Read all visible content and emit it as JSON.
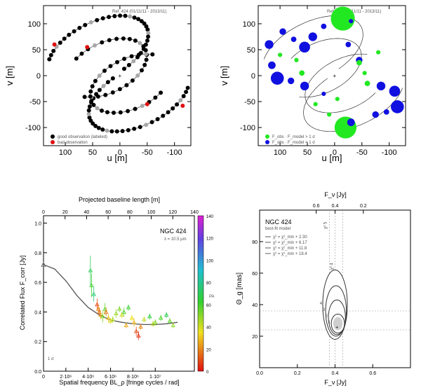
{
  "chart_data": [
    {
      "type": "scatter",
      "name": "uv-coverage-observations",
      "title": "Ref. 424 (01/11/11 - 2013/11)",
      "xlabel": "u [m]",
      "ylabel": "v [m]",
      "xlim": [
        140,
        -130
      ],
      "ylim": [
        -135,
        135
      ],
      "x_ticks": [
        100,
        50,
        0,
        -50,
        -100
      ],
      "y_ticks": [
        100,
        50,
        0,
        -50,
        -100
      ],
      "legend": [
        "good observation (labeled)",
        "bad observation"
      ],
      "colors": {
        "good": "#000000",
        "bad": "#e01010",
        "flagged": "#a8a8a8"
      },
      "tracks": [
        {
          "cx": 40,
          "cy": 48,
          "a": 100,
          "b": 55,
          "rot": -28,
          "from": 30,
          "to": 255,
          "dots": 34
        },
        {
          "cx": -35,
          "cy": -40,
          "a": 100,
          "b": 55,
          "rot": -28,
          "from": 210,
          "to": 435,
          "dots": 34
        },
        {
          "cx": 25,
          "cy": 15,
          "a": 80,
          "b": 48,
          "rot": -28,
          "from": 60,
          "to": 320,
          "dots": 26
        },
        {
          "cx": -20,
          "cy": -15,
          "a": 80,
          "b": 48,
          "rot": -28,
          "from": 240,
          "to": 500,
          "dots": 26
        }
      ],
      "bad_points": [
        [
          120,
          60
        ],
        [
          60,
          55
        ],
        [
          -50,
          -55
        ],
        [
          -115,
          -58
        ]
      ],
      "center": [
        0,
        0
      ]
    },
    {
      "type": "scatter",
      "name": "uv-coverage-flux",
      "title": "Ref. 424 (01/11/11 - 2013/11)",
      "xlabel": "u [m]",
      "ylabel": "v [m]",
      "xlim": [
        140,
        -130
      ],
      "ylim": [
        -135,
        135
      ],
      "x_ticks": [
        100,
        50,
        0,
        -50,
        -100
      ],
      "y_ticks": [
        100,
        50,
        0,
        -50,
        -100
      ],
      "legend": [
        "F_obs · F_model > 1 σ",
        "F_obs · F_model < 1 σ"
      ],
      "colors": {
        "over": "#22e822",
        "under": "#1010e0"
      },
      "bubbles": [
        [
          -15,
          110,
          22,
          "over"
        ],
        [
          40,
          75,
          8,
          "under"
        ],
        [
          55,
          55,
          10,
          "under"
        ],
        [
          120,
          60,
          8,
          "under"
        ],
        [
          95,
          85,
          6,
          "under"
        ],
        [
          75,
          70,
          5,
          "under"
        ],
        [
          20,
          95,
          5,
          "under"
        ],
        [
          -30,
          105,
          4,
          "under"
        ],
        [
          115,
          20,
          7,
          "under"
        ],
        [
          105,
          -5,
          12,
          "under"
        ],
        [
          80,
          -10,
          6,
          "under"
        ],
        [
          55,
          -20,
          8,
          "under"
        ],
        [
          -45,
          30,
          6,
          "under"
        ],
        [
          -55,
          5,
          4,
          "over"
        ],
        [
          -85,
          -20,
          8,
          "under"
        ],
        [
          -110,
          -30,
          10,
          "under"
        ],
        [
          -115,
          -60,
          12,
          "under"
        ],
        [
          -75,
          -75,
          6,
          "under"
        ],
        [
          -20,
          -100,
          20,
          "over"
        ],
        [
          -30,
          -90,
          7,
          "under"
        ],
        [
          60,
          5,
          5,
          "over"
        ],
        [
          -45,
          25,
          5,
          "over"
        ],
        [
          10,
          -75,
          4,
          "over"
        ],
        [
          -60,
          -15,
          5,
          "over"
        ],
        [
          100,
          40,
          4,
          "over"
        ],
        [
          35,
          -55,
          4,
          "over"
        ],
        [
          -95,
          -70,
          5,
          "under"
        ],
        [
          70,
          30,
          4,
          "over"
        ],
        [
          -25,
          60,
          5,
          "under"
        ],
        [
          -80,
          45,
          4,
          "over"
        ],
        [
          20,
          -35,
          4,
          "under"
        ],
        [
          -5,
          -45,
          4,
          "over"
        ]
      ]
    },
    {
      "type": "scatter",
      "name": "correlated-flux-vs-spatial-frequency",
      "title": "NGC 424",
      "subtitle": "λ = 10.5 μm",
      "xlabel": "Spatial frequency BL_ρ [fringe cycles / rad]",
      "x2label": "Projected baseline length [m]",
      "ylabel": "Correlated Flux F_corr [Jy]",
      "xlim": [
        0,
        13500000.0
      ],
      "ylim": [
        0.0,
        1.05
      ],
      "x_tick_labels": [
        "0",
        "2·10⁶",
        "4·10⁶",
        "6·10⁶",
        "8·10⁶",
        "1·10⁷"
      ],
      "x_tick_values": [
        0,
        2000000.0,
        4000000.0,
        6000000.0,
        8000000.0,
        10000000.0
      ],
      "x2_tick_labels": [
        "0",
        "20",
        "40",
        "60",
        "80",
        "100",
        "120",
        "140"
      ],
      "y_tick_labels": [
        "0.0",
        "0.2",
        "0.4",
        "0.6",
        "0.8",
        "1.0"
      ],
      "y_tick_values": [
        0.0,
        0.2,
        0.4,
        0.6,
        0.8,
        1.0
      ],
      "colorbar_label": "PA",
      "colorbar_range": [
        0,
        140
      ],
      "colorbar_ticks": [
        "0",
        "20",
        "40",
        "60",
        "80",
        "100",
        "120",
        "140"
      ],
      "model_curve": {
        "x": [
          0,
          1000000.0,
          2000000.0,
          3000000.0,
          4000000.0,
          5000000.0,
          6000000.0,
          7000000.0,
          8000000.0,
          9000000.0,
          10000000.0,
          11000000.0,
          12000000.0
        ],
        "y": [
          0.72,
          0.69,
          0.61,
          0.51,
          0.43,
          0.38,
          0.345,
          0.33,
          0.32,
          0.315,
          0.315,
          0.32,
          0.33
        ]
      },
      "total_flux_point": [
        0,
        0.72
      ],
      "points": [
        [
          4200000.0,
          0.68,
          0.1,
          70
        ],
        [
          4300000.0,
          0.58,
          0.08,
          60
        ],
        [
          4500000.0,
          0.52,
          0.05,
          75
        ],
        [
          4800000.0,
          0.45,
          0.04,
          10
        ],
        [
          4900000.0,
          0.42,
          0.03,
          20
        ],
        [
          5000000.0,
          0.4,
          0.03,
          15
        ],
        [
          5100000.0,
          0.38,
          0.03,
          25
        ],
        [
          5300000.0,
          0.37,
          0.04,
          50
        ],
        [
          5500000.0,
          0.42,
          0.04,
          55
        ],
        [
          5800000.0,
          0.36,
          0.03,
          30
        ],
        [
          6200000.0,
          0.35,
          0.02,
          45
        ],
        [
          6500000.0,
          0.39,
          0.03,
          48
        ],
        [
          6800000.0,
          0.42,
          0.02,
          52
        ],
        [
          7000000.0,
          0.38,
          0.02,
          40
        ],
        [
          7200000.0,
          0.4,
          0.03,
          58
        ],
        [
          7600000.0,
          0.43,
          0.02,
          62
        ],
        [
          7900000.0,
          0.36,
          0.02,
          35
        ],
        [
          8100000.0,
          0.33,
          0.03,
          28
        ],
        [
          8300000.0,
          0.27,
          0.03,
          10
        ],
        [
          8500000.0,
          0.24,
          0.03,
          5
        ],
        [
          8700000.0,
          0.3,
          0.02,
          20
        ],
        [
          9000000.0,
          0.35,
          0.02,
          42
        ],
        [
          9500000.0,
          0.37,
          0.02,
          65
        ],
        [
          10000000.0,
          0.33,
          0.02,
          50
        ],
        [
          10500000.0,
          0.36,
          0.02,
          58
        ],
        [
          11000000.0,
          0.38,
          0.02,
          70
        ],
        [
          11300000.0,
          0.34,
          0.02,
          55
        ],
        [
          11600000.0,
          0.31,
          0.02,
          48
        ],
        [
          5600000.0,
          0.4,
          0.03,
          18
        ],
        [
          6000000.0,
          0.34,
          0.02,
          38
        ],
        [
          7400000.0,
          0.31,
          0.02,
          26
        ],
        [
          9800000.0,
          0.32,
          0.02,
          44
        ]
      ],
      "annotation": "1 σ"
    },
    {
      "type": "line",
      "name": "chi2-contours",
      "title": "NGC 424",
      "xlabel": "F_ν [Jy]",
      "x2label": "F_ν [Jy]",
      "ylabel": "Θ_g [mas]",
      "xlim": [
        0.0,
        0.8
      ],
      "ylim": [
        0,
        100
      ],
      "x_tick_labels": [
        "0.0",
        "0.2",
        "0.4",
        "0.6"
      ],
      "x_tick_values": [
        0.0,
        0.2,
        0.4,
        0.6
      ],
      "x2_tick_labels": [
        "0.6",
        "0.4",
        "0.2"
      ],
      "x2_tick_values": [
        0.3,
        0.4,
        0.55
      ],
      "y_tick_labels": [
        "20",
        "40",
        "60",
        "80"
      ],
      "y_tick_values": [
        20,
        40,
        60,
        80
      ],
      "legend": [
        "χ² = χ²_min + 2.30",
        "χ² = χ²_min + 6.17",
        "χ² = χ²_min + 11.8",
        "χ² = χ²_min + 18.4"
      ],
      "subtitle": "best-fit model",
      "best_fit": [
        0.41,
        26
      ],
      "contours": [
        {
          "cx": 0.415,
          "cy": 28,
          "rx": 0.035,
          "ry": 6,
          "label": "1"
        },
        {
          "cx": 0.41,
          "cy": 32,
          "rx": 0.045,
          "ry": 11,
          "label": "2"
        },
        {
          "cx": 0.405,
          "cy": 36,
          "rx": 0.055,
          "ry": 16,
          "label": "3"
        },
        {
          "cx": 0.4,
          "cy": 40,
          "rx": 0.065,
          "ry": 22,
          "label": "4"
        }
      ],
      "guide_lines_x": [
        0.37,
        0.4,
        0.44
      ],
      "guide_lines_y": [
        24,
        36
      ],
      "line_labels": [
        "χ² 5",
        "χ² 4"
      ]
    }
  ]
}
